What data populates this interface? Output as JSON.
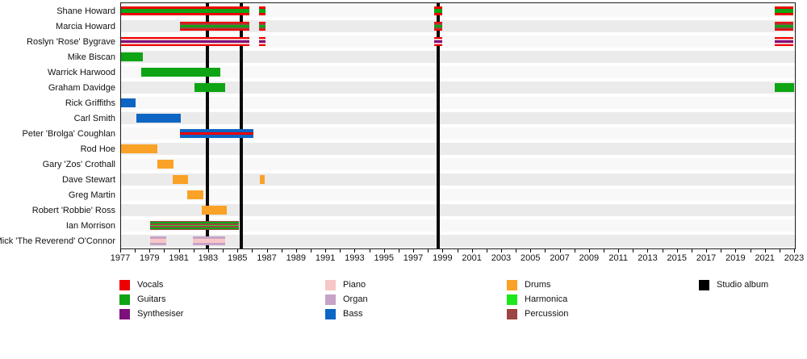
{
  "chart_data": {
    "type": "bar",
    "subtype": "band-membership-timeline",
    "title": "",
    "xlabel": "",
    "ylabel": "",
    "grid": "alternating-row-bands",
    "x_axis": {
      "start": 1977,
      "end": 2023,
      "tick_step": 1,
      "label_step": 2
    },
    "x_tick_labels": [
      "1977",
      "1979",
      "1981",
      "1983",
      "1985",
      "1987",
      "1989",
      "1991",
      "1993",
      "1995",
      "1997",
      "1999",
      "2001",
      "2003",
      "2005",
      "2007",
      "2009",
      "2011",
      "2013",
      "2015",
      "2017",
      "2019",
      "2021",
      "2023"
    ],
    "instruments": {
      "vocals": {
        "label": "Vocals",
        "color": "#ee0000"
      },
      "guitars": {
        "label": "Guitars",
        "color": "#0ea414"
      },
      "synthesiser": {
        "label": "Synthesiser",
        "color": "#7d107d"
      },
      "piano": {
        "label": "Piano",
        "color": "#f7c6c6"
      },
      "organ": {
        "label": "Organ",
        "color": "#c7a3c7"
      },
      "bass": {
        "label": "Bass",
        "color": "#0d65c4"
      },
      "drums": {
        "label": "Drums",
        "color": "#f9a227"
      },
      "harmonica": {
        "label": "Harmonica",
        "color": "#1ce81c"
      },
      "percussion": {
        "label": "Percussion",
        "color": "#9e4444"
      },
      "album": {
        "label": "Studio album",
        "color": "#000000"
      }
    },
    "album_years": [
      1982.9,
      1985.2,
      1998.65
    ],
    "members": [
      {
        "name": "Shane Howard",
        "stripes": [
          [
            "vocals",
            3
          ],
          [
            "guitars",
            5
          ],
          [
            "vocals",
            3
          ]
        ],
        "periods": [
          [
            1977.0,
            1985.75
          ],
          [
            1986.4,
            1986.85
          ],
          [
            1998.35,
            1998.95
          ],
          [
            2021.6,
            2022.9
          ]
        ]
      },
      {
        "name": "Marcia Howard",
        "stripes": [
          [
            "vocals",
            2.5
          ],
          [
            "percussion",
            2
          ],
          [
            "guitars",
            3
          ],
          [
            "percussion",
            2
          ],
          [
            "vocals",
            2.5
          ]
        ],
        "periods": [
          [
            1981.0,
            1985.75
          ],
          [
            1986.4,
            1986.85
          ],
          [
            1998.35,
            1998.95
          ],
          [
            2021.6,
            2022.9
          ]
        ]
      },
      {
        "name": "Roslyn 'Rose' Bygrave",
        "stripes": [
          [
            "vocals",
            2
          ],
          [
            "piano",
            2
          ],
          [
            "synthesiser",
            3
          ],
          [
            "piano",
            2
          ],
          [
            "vocals",
            2
          ]
        ],
        "periods": [
          [
            1977.0,
            1985.75
          ],
          [
            1986.4,
            1986.85
          ],
          [
            1998.35,
            1998.95
          ],
          [
            2021.6,
            2022.9
          ]
        ]
      },
      {
        "name": "Mike Biscan",
        "stripes": [
          [
            "guitars",
            1
          ]
        ],
        "periods": [
          [
            1977.0,
            1978.5
          ]
        ]
      },
      {
        "name": "Warrick Harwood",
        "stripes": [
          [
            "guitars",
            1
          ]
        ],
        "periods": [
          [
            1978.4,
            1983.75
          ]
        ]
      },
      {
        "name": "Graham Davidge",
        "stripes": [
          [
            "guitars",
            1
          ]
        ],
        "periods": [
          [
            1982.0,
            1984.1
          ],
          [
            2021.6,
            2022.95
          ]
        ]
      },
      {
        "name": "Rick Griffiths",
        "stripes": [
          [
            "bass",
            1
          ]
        ],
        "periods": [
          [
            1977.0,
            1978.0
          ]
        ]
      },
      {
        "name": "Carl Smith",
        "stripes": [
          [
            "bass",
            1
          ]
        ],
        "periods": [
          [
            1978.05,
            1981.1
          ]
        ]
      },
      {
        "name": "Peter 'Brolga' Coughlan",
        "stripes": [
          [
            "bass",
            4
          ],
          [
            "vocals",
            3
          ],
          [
            "bass",
            4
          ]
        ],
        "periods": [
          [
            1981.0,
            1986.05
          ]
        ]
      },
      {
        "name": "Rod Hoe",
        "stripes": [
          [
            "drums",
            1
          ]
        ],
        "periods": [
          [
            1977.0,
            1979.5
          ]
        ]
      },
      {
        "name": "Gary 'Zos' Crothall",
        "stripes": [
          [
            "drums",
            1
          ]
        ],
        "periods": [
          [
            1979.5,
            1980.6
          ]
        ]
      },
      {
        "name": "Dave Stewart",
        "stripes": [
          [
            "drums",
            1
          ]
        ],
        "periods": [
          [
            1980.5,
            1981.6
          ],
          [
            1986.45,
            1986.8
          ]
        ]
      },
      {
        "name": "Greg Martin",
        "stripes": [
          [
            "drums",
            1
          ]
        ],
        "periods": [
          [
            1981.5,
            1982.6
          ]
        ]
      },
      {
        "name": "Robert 'Robbie' Ross",
        "stripes": [
          [
            "drums",
            1
          ]
        ],
        "periods": [
          [
            1982.5,
            1984.2
          ]
        ]
      },
      {
        "name": "Ian Morrison",
        "stripes": [
          [
            "percussion",
            1.5
          ],
          [
            "guitars",
            2
          ],
          [
            "percussion",
            1.5
          ],
          [
            "harmonica",
            2
          ],
          [
            "percussion",
            1.5
          ],
          [
            "guitars",
            2
          ],
          [
            "percussion",
            1.5
          ]
        ],
        "periods": [
          [
            1979.0,
            1985.05
          ]
        ]
      },
      {
        "name": "Mick 'The Reverend' O'Connor",
        "stripes": [
          [
            "organ",
            3
          ],
          [
            "piano",
            5
          ],
          [
            "organ",
            3
          ]
        ],
        "periods": [
          [
            1979.0,
            1980.1
          ],
          [
            1981.9,
            1984.1
          ]
        ]
      }
    ]
  },
  "legend": {
    "columns": [
      [
        "vocals",
        "guitars",
        "synthesiser"
      ],
      [
        "piano",
        "organ",
        "bass"
      ],
      [
        "drums",
        "harmonica",
        "percussion"
      ],
      [
        "album"
      ]
    ]
  },
  "style": {
    "row_band_odd": "#ebebeb",
    "row_band_even": "#f8f8f8",
    "axis_color": "#1a1a1a"
  }
}
